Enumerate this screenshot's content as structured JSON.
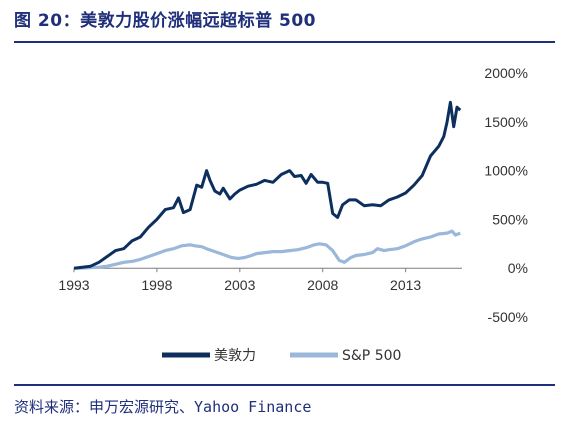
{
  "figure": {
    "title": "图 20：美敦力股价涨幅远超标普 500",
    "source": "资料来源：申万宏源研究、Yahoo Finance"
  },
  "colors": {
    "title": "#1f2f7a",
    "mdt": "#0d2f5e",
    "sp500": "#9bb7da"
  },
  "chart_data": {
    "type": "line",
    "title": "",
    "xlabel": "",
    "ylabel": "",
    "xlim": [
      1993,
      2016.4
    ],
    "ylim": [
      -500,
      2000
    ],
    "x_ticks": [
      "1993",
      "1998",
      "2003",
      "2008",
      "2013"
    ],
    "y_ticks": [
      "2000%",
      "1500%",
      "1000%",
      "500%",
      "0%",
      "-500%"
    ],
    "y_tick_values": [
      2000,
      1500,
      1000,
      500,
      0,
      -500
    ],
    "grid": false,
    "legend": "bottom",
    "series": [
      {
        "name": "美敦力",
        "x": [
          1993.0,
          1993.5,
          1994.0,
          1994.5,
          1995.0,
          1995.5,
          1996.0,
          1996.5,
          1997.0,
          1997.5,
          1998.0,
          1998.5,
          1999.0,
          1999.3,
          1999.6,
          2000.0,
          2000.4,
          2000.7,
          2001.0,
          2001.2,
          2001.5,
          2001.8,
          2002.0,
          2002.4,
          2002.7,
          2003.0,
          2003.5,
          2004.0,
          2004.5,
          2005.0,
          2005.5,
          2006.0,
          2006.3,
          2006.7,
          2007.0,
          2007.3,
          2007.7,
          2008.0,
          2008.3,
          2008.6,
          2008.9,
          2009.2,
          2009.6,
          2010.0,
          2010.5,
          2011.0,
          2011.5,
          2012.0,
          2012.5,
          2013.0,
          2013.5,
          2014.0,
          2014.5,
          2015.0,
          2015.3,
          2015.5,
          2015.7,
          2015.9,
          2016.1,
          2016.3
        ],
        "values": [
          0,
          10,
          20,
          60,
          120,
          180,
          200,
          280,
          320,
          420,
          500,
          600,
          620,
          720,
          570,
          600,
          850,
          830,
          1000,
          900,
          790,
          760,
          820,
          710,
          760,
          800,
          840,
          860,
          900,
          880,
          960,
          1000,
          940,
          950,
          870,
          960,
          880,
          880,
          870,
          560,
          520,
          650,
          700,
          700,
          640,
          650,
          640,
          700,
          730,
          770,
          850,
          950,
          1150,
          1250,
          1350,
          1500,
          1700,
          1450,
          1650,
          1620
        ]
      },
      {
        "name": "S&P 500",
        "x": [
          1993.0,
          1993.5,
          1994.0,
          1994.5,
          1995.0,
          1995.5,
          1996.0,
          1996.5,
          1997.0,
          1997.5,
          1998.0,
          1998.5,
          1999.0,
          1999.5,
          2000.0,
          2000.3,
          2000.7,
          2001.0,
          2001.5,
          2002.0,
          2002.5,
          2002.9,
          2003.3,
          2003.7,
          2004.0,
          2004.5,
          2005.0,
          2005.5,
          2006.0,
          2006.5,
          2007.0,
          2007.5,
          2007.8,
          2008.2,
          2008.6,
          2009.0,
          2009.3,
          2009.7,
          2010.0,
          2010.5,
          2011.0,
          2011.3,
          2011.7,
          2012.0,
          2012.5,
          2013.0,
          2013.5,
          2014.0,
          2014.5,
          2015.0,
          2015.5,
          2015.8,
          2016.0,
          2016.3
        ],
        "values": [
          0,
          2,
          5,
          10,
          20,
          40,
          60,
          70,
          90,
          120,
          150,
          180,
          200,
          230,
          240,
          230,
          220,
          200,
          170,
          140,
          110,
          100,
          110,
          130,
          150,
          160,
          170,
          170,
          180,
          190,
          210,
          240,
          250,
          240,
          180,
          80,
          60,
          110,
          130,
          140,
          160,
          200,
          180,
          190,
          200,
          230,
          270,
          300,
          320,
          350,
          360,
          380,
          340,
          360
        ]
      }
    ]
  }
}
